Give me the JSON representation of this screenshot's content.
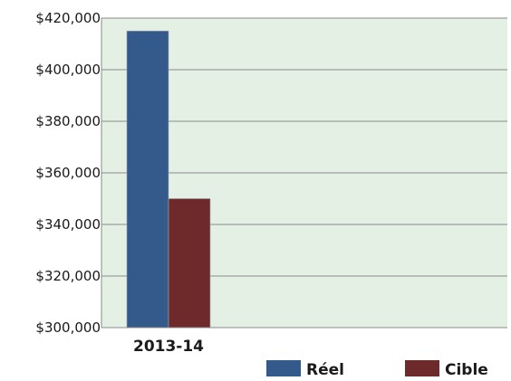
{
  "chart_data": {
    "type": "bar",
    "categories": [
      "2013-14"
    ],
    "series": [
      {
        "name": "Réel",
        "values": [
          415000
        ],
        "color": "#345a8c"
      },
      {
        "name": "Cible",
        "values": [
          350000
        ],
        "color": "#6e2a2a"
      }
    ],
    "ylim": [
      300000,
      420000
    ],
    "yticks": [
      "$300,000",
      "$320,000",
      "$340,000",
      "$360,000",
      "$380,000",
      "$400,000",
      "$420,000"
    ],
    "ytick_values": [
      300000,
      320000,
      340000,
      360000,
      380000,
      400000,
      420000
    ],
    "grid": true,
    "legend_placement": "bottom-right",
    "plot_background": "#e4f0e4",
    "grid_color": "#8a8a8a"
  }
}
